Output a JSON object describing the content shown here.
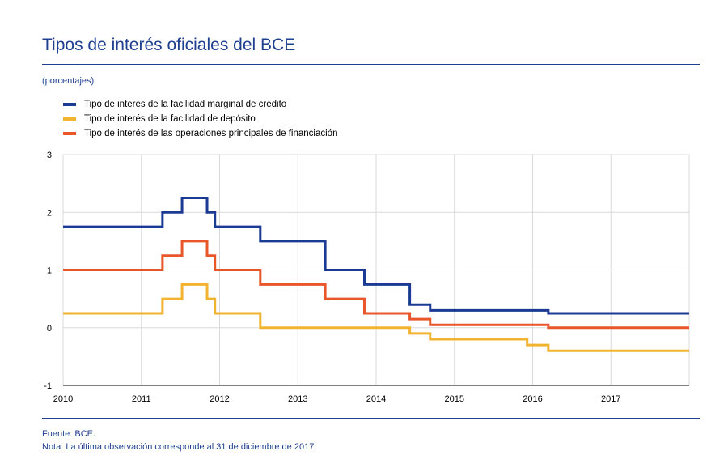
{
  "title": "Tipos de interés oficiales del BCE",
  "units": "(porcentajes)",
  "source": "Fuente: BCE.",
  "note": "Nota: La última observación corresponde al 31 de diciembre de 2017.",
  "chart_data": {
    "type": "line",
    "xlim": [
      2010,
      2018
    ],
    "ylim": [
      -1,
      3
    ],
    "x_ticks": [
      "2010",
      "2011",
      "2012",
      "2013",
      "2014",
      "2015",
      "2016",
      "2017"
    ],
    "y_ticks": [
      "-1",
      "0",
      "1",
      "2",
      "3"
    ],
    "grid": true,
    "legend_position": "top-left",
    "series": [
      {
        "name": "Tipo de interés de la facilidad marginal de crédito",
        "color": "#1b3a94",
        "step": true,
        "points": [
          [
            2010.0,
            1.75
          ],
          [
            2011.27,
            2.0
          ],
          [
            2011.52,
            2.25
          ],
          [
            2011.84,
            2.0
          ],
          [
            2011.94,
            1.75
          ],
          [
            2012.52,
            1.5
          ],
          [
            2013.35,
            1.0
          ],
          [
            2013.85,
            0.75
          ],
          [
            2014.43,
            0.4
          ],
          [
            2014.69,
            0.3
          ],
          [
            2016.2,
            0.25
          ],
          [
            2018.0,
            0.25
          ]
        ]
      },
      {
        "name": "Tipo de interés de la facilidad de depósito",
        "color": "#f2b430",
        "step": true,
        "points": [
          [
            2010.0,
            0.25
          ],
          [
            2011.27,
            0.5
          ],
          [
            2011.52,
            0.75
          ],
          [
            2011.84,
            0.5
          ],
          [
            2011.94,
            0.25
          ],
          [
            2012.52,
            0.0
          ],
          [
            2014.43,
            -0.1
          ],
          [
            2014.69,
            -0.2
          ],
          [
            2015.93,
            -0.3
          ],
          [
            2016.2,
            -0.4
          ],
          [
            2018.0,
            -0.4
          ]
        ]
      },
      {
        "name": "Tipo de interés de las operaciones principales de financiación",
        "color": "#e8562a",
        "step": true,
        "points": [
          [
            2010.0,
            1.0
          ],
          [
            2011.27,
            1.25
          ],
          [
            2011.52,
            1.5
          ],
          [
            2011.84,
            1.25
          ],
          [
            2011.94,
            1.0
          ],
          [
            2012.52,
            0.75
          ],
          [
            2013.35,
            0.5
          ],
          [
            2013.85,
            0.25
          ],
          [
            2014.43,
            0.15
          ],
          [
            2014.69,
            0.05
          ],
          [
            2016.2,
            0.0
          ],
          [
            2018.0,
            0.0
          ]
        ]
      }
    ]
  }
}
